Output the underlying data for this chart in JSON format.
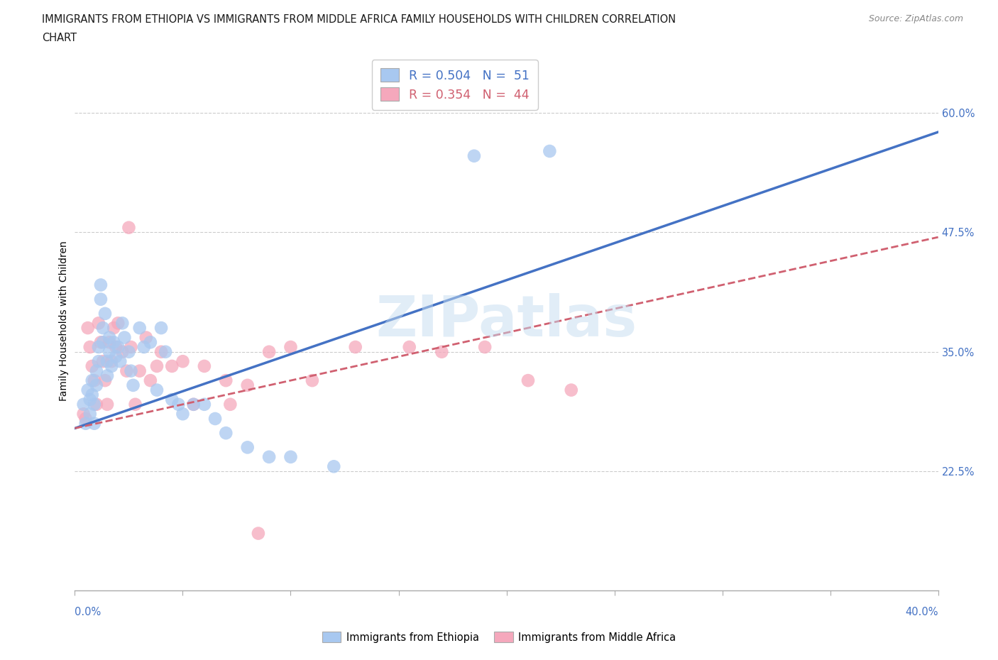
{
  "title_line1": "IMMIGRANTS FROM ETHIOPIA VS IMMIGRANTS FROM MIDDLE AFRICA FAMILY HOUSEHOLDS WITH CHILDREN CORRELATION",
  "title_line2": "CHART",
  "source": "Source: ZipAtlas.com",
  "ylabel": "Family Households with Children",
  "ytick_labels": [
    "60.0%",
    "47.5%",
    "35.0%",
    "22.5%"
  ],
  "ytick_vals": [
    0.6,
    0.475,
    0.35,
    0.225
  ],
  "xlim": [
    0.0,
    0.4
  ],
  "ylim": [
    0.1,
    0.665
  ],
  "color_ethiopia": "#a8c8f0",
  "color_middle_africa": "#f5a8bc",
  "color_line_ethiopia": "#4472c4",
  "color_line_middle_africa": "#d06070",
  "legend_ethiopia_r": "0.504",
  "legend_ethiopia_n": "51",
  "legend_middle_africa_r": "0.354",
  "legend_middle_africa_n": "44",
  "ethiopia_scatter_x": [
    0.004,
    0.005,
    0.006,
    0.007,
    0.007,
    0.008,
    0.008,
    0.009,
    0.009,
    0.01,
    0.01,
    0.011,
    0.011,
    0.012,
    0.012,
    0.013,
    0.013,
    0.014,
    0.015,
    0.015,
    0.016,
    0.016,
    0.017,
    0.018,
    0.019,
    0.02,
    0.021,
    0.022,
    0.023,
    0.025,
    0.026,
    0.027,
    0.03,
    0.032,
    0.035,
    0.038,
    0.04,
    0.042,
    0.045,
    0.048,
    0.05,
    0.055,
    0.06,
    0.065,
    0.07,
    0.08,
    0.09,
    0.1,
    0.12,
    0.185,
    0.22
  ],
  "ethiopia_scatter_y": [
    0.295,
    0.275,
    0.31,
    0.3,
    0.285,
    0.32,
    0.305,
    0.295,
    0.275,
    0.33,
    0.315,
    0.355,
    0.34,
    0.42,
    0.405,
    0.375,
    0.36,
    0.39,
    0.34,
    0.325,
    0.365,
    0.35,
    0.335,
    0.36,
    0.345,
    0.355,
    0.34,
    0.38,
    0.365,
    0.35,
    0.33,
    0.315,
    0.375,
    0.355,
    0.36,
    0.31,
    0.375,
    0.35,
    0.3,
    0.295,
    0.285,
    0.295,
    0.295,
    0.28,
    0.265,
    0.25,
    0.24,
    0.24,
    0.23,
    0.555,
    0.56
  ],
  "middle_africa_scatter_x": [
    0.004,
    0.005,
    0.006,
    0.007,
    0.008,
    0.009,
    0.01,
    0.011,
    0.012,
    0.013,
    0.014,
    0.015,
    0.016,
    0.017,
    0.018,
    0.019,
    0.02,
    0.022,
    0.024,
    0.026,
    0.028,
    0.03,
    0.033,
    0.035,
    0.038,
    0.04,
    0.045,
    0.05,
    0.06,
    0.07,
    0.08,
    0.09,
    0.1,
    0.11,
    0.13,
    0.155,
    0.17,
    0.19,
    0.21,
    0.23,
    0.055,
    0.025,
    0.072,
    0.085
  ],
  "middle_africa_scatter_y": [
    0.285,
    0.28,
    0.375,
    0.355,
    0.335,
    0.32,
    0.295,
    0.38,
    0.36,
    0.34,
    0.32,
    0.295,
    0.36,
    0.34,
    0.375,
    0.355,
    0.38,
    0.35,
    0.33,
    0.355,
    0.295,
    0.33,
    0.365,
    0.32,
    0.335,
    0.35,
    0.335,
    0.34,
    0.335,
    0.32,
    0.315,
    0.35,
    0.355,
    0.32,
    0.355,
    0.355,
    0.35,
    0.355,
    0.32,
    0.31,
    0.295,
    0.48,
    0.295,
    0.16
  ],
  "ethiopia_line_x": [
    0.0,
    0.4
  ],
  "ethiopia_line_y": [
    0.27,
    0.58
  ],
  "middle_africa_line_x": [
    0.0,
    0.4
  ],
  "middle_africa_line_y": [
    0.27,
    0.47
  ],
  "grid_color": "#cccccc",
  "background_color": "#ffffff",
  "tick_color": "#4472c4"
}
